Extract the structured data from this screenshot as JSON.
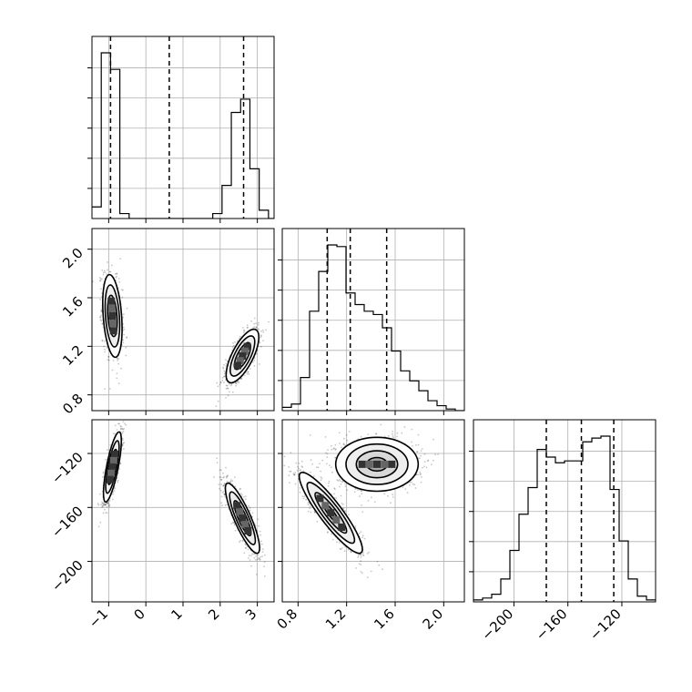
{
  "chart_data": {
    "type": "corner",
    "parameters": [
      {
        "name": "",
        "range": [
          -1.45,
          3.45
        ],
        "ticks": [
          -1,
          0,
          1,
          2,
          3
        ],
        "tick_labels": [
          "−1",
          "0",
          "1",
          "2",
          "3"
        ],
        "quantiles": [
          -0.95,
          0.63,
          2.63
        ],
        "histogram": {
          "edges": [
            -1.45,
            -1.2,
            -0.95,
            -0.7,
            -0.45,
            -0.2,
            0.05,
            0.3,
            0.55,
            0.8,
            1.05,
            1.3,
            1.55,
            1.8,
            2.05,
            2.3,
            2.55,
            2.8,
            3.05,
            3.3,
            3.45
          ],
          "counts": [
            70,
            1000,
            900,
            30,
            0,
            0,
            0,
            0,
            0,
            0,
            0,
            0,
            0,
            30,
            200,
            640,
            720,
            300,
            50,
            0
          ]
        }
      },
      {
        "name": "",
        "range": [
          0.67,
          2.17
        ],
        "ticks": [
          0.8,
          1.2,
          1.6,
          2.0
        ],
        "tick_labels": [
          "0.8",
          "1.2",
          "1.6",
          "2.0"
        ],
        "quantiles": [
          1.04,
          1.23,
          1.53
        ],
        "histogram": {
          "edges": [
            0.67,
            0.745,
            0.82,
            0.895,
            0.97,
            1.045,
            1.12,
            1.195,
            1.27,
            1.345,
            1.42,
            1.495,
            1.57,
            1.645,
            1.72,
            1.795,
            1.87,
            1.945,
            2.02,
            2.095,
            2.17
          ],
          "counts": [
            20,
            40,
            200,
            600,
            840,
            1000,
            990,
            710,
            640,
            600,
            580,
            500,
            360,
            240,
            180,
            120,
            60,
            30,
            10,
            0
          ]
        }
      },
      {
        "name": "",
        "range": [
          -230,
          -95
        ],
        "ticks": [
          -200,
          -160,
          -120
        ],
        "tick_labels": [
          "−200",
          "−160",
          "−120"
        ],
        "quantiles": [
          -176,
          -150,
          -126
        ],
        "histogram": {
          "edges": [
            -230,
            -223.25,
            -216.5,
            -209.75,
            -203,
            -196.25,
            -189.5,
            -182.75,
            -176,
            -169.25,
            -162.5,
            -155.75,
            -149,
            -142.25,
            -135.5,
            -128.75,
            -122,
            -115.25,
            -108.5,
            -101.75,
            -95
          ],
          "counts": [
            10,
            20,
            40,
            120,
            270,
            460,
            600,
            800,
            760,
            730,
            740,
            740,
            840,
            860,
            870,
            590,
            320,
            120,
            30,
            10
          ]
        }
      }
    ],
    "scatter_clusters": [
      {
        "pair": [
          0,
          1
        ],
        "cx": -0.9,
        "cy": 1.45,
        "sx": 0.13,
        "sy": 0.17,
        "rho": -0.3
      },
      {
        "pair": [
          0,
          1
        ],
        "cx": 2.6,
        "cy": 1.12,
        "sx": 0.22,
        "sy": 0.11,
        "rho": 0.7
      },
      {
        "pair": [
          0,
          2
        ],
        "cx": -0.9,
        "cy": -130,
        "sx": 0.12,
        "sy": 13,
        "rho": 0.75
      },
      {
        "pair": [
          0,
          2
        ],
        "cx": 2.6,
        "cy": -168,
        "sx": 0.23,
        "sy": 13,
        "rho": -0.85
      },
      {
        "pair": [
          1,
          2
        ],
        "cx": 1.07,
        "cy": -164,
        "sx": 0.13,
        "sy": 15,
        "rho": -0.9
      },
      {
        "pair": [
          1,
          2
        ],
        "cx": 1.45,
        "cy": -128,
        "sx": 0.17,
        "sy": 10,
        "rho": 0.0
      }
    ],
    "grid": true
  }
}
